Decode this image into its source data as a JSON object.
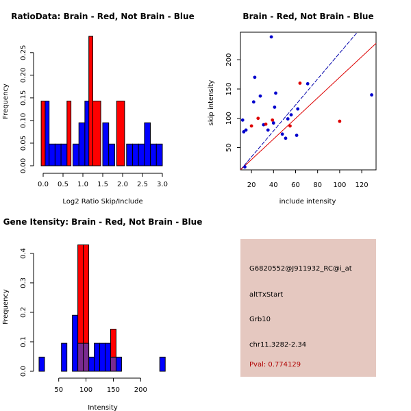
{
  "chart_data": [
    {
      "type": "histogram",
      "title": "RatioData: Brain - Red, Not Brain - Blue",
      "xlabel": "Log2 Ratio Skip/Include",
      "ylabel": "Frequency",
      "xlim": [
        0.0,
        3.0
      ],
      "ylim": [
        0.0,
        0.28
      ],
      "xticks": [
        "0.0",
        "0.5",
        "1.0",
        "1.5",
        "2.0",
        "2.5",
        "3.0"
      ],
      "yticks": [
        "0.00",
        "0.05",
        "0.10",
        "0.15",
        "0.20",
        "0.25"
      ],
      "bin_width": 0.15,
      "series": [
        {
          "name": "Not Brain",
          "color": "#0000ff",
          "bins": [
            [
              0.0,
              0.15,
              0.143
            ],
            [
              0.15,
              0.3,
              0.048
            ],
            [
              0.3,
              0.45,
              0.048
            ],
            [
              0.45,
              0.6,
              0.048
            ],
            [
              0.75,
              0.9,
              0.048
            ],
            [
              0.9,
              1.05,
              0.095
            ],
            [
              1.05,
              1.2,
              0.143
            ],
            [
              1.5,
              1.65,
              0.095
            ],
            [
              1.65,
              1.8,
              0.048
            ],
            [
              2.1,
              2.25,
              0.048
            ],
            [
              2.25,
              2.4,
              0.048
            ],
            [
              2.4,
              2.55,
              0.048
            ],
            [
              2.55,
              2.7,
              0.095
            ],
            [
              2.7,
              2.85,
              0.048
            ],
            [
              2.85,
              3.0,
              0.048
            ]
          ]
        },
        {
          "name": "Brain",
          "color": "#ff0000",
          "bins": [
            [
              -0.05,
              0.05,
              0.143
            ],
            [
              0.6,
              0.7,
              0.143
            ],
            [
              1.15,
              1.25,
              0.286
            ],
            [
              1.25,
              1.45,
              0.143
            ],
            [
              1.85,
              2.05,
              0.143
            ]
          ]
        }
      ]
    },
    {
      "type": "scatter",
      "title": "Brain - Red, Not Brain - Blue",
      "xlabel": "include intensity",
      "ylabel": "skip intensity",
      "xlim": [
        10,
        133
      ],
      "ylim": [
        12,
        247
      ],
      "xticks": [
        20,
        40,
        60,
        80,
        100,
        120
      ],
      "yticks": [
        50,
        100,
        150,
        200
      ],
      "series": [
        {
          "name": "Not Brain",
          "color": "#0000cc",
          "points": [
            [
              12,
              97
            ],
            [
              13,
              77
            ],
            [
              14,
              17
            ],
            [
              15,
              80
            ],
            [
              22,
              128
            ],
            [
              23,
              170
            ],
            [
              28,
              138
            ],
            [
              31,
              89
            ],
            [
              35,
              80
            ],
            [
              38,
              239
            ],
            [
              40,
              92
            ],
            [
              41,
              119
            ],
            [
              42,
              143
            ],
            [
              48,
              73
            ],
            [
              51,
              66
            ],
            [
              53,
              99
            ],
            [
              56,
              106
            ],
            [
              61,
              71
            ],
            [
              62,
              116
            ],
            [
              71,
              159
            ],
            [
              129,
              140
            ]
          ]
        },
        {
          "name": "Brain",
          "color": "#dd0000",
          "points": [
            [
              20,
              87
            ],
            [
              26,
              100
            ],
            [
              33,
              90
            ],
            [
              39,
              97
            ],
            [
              55,
              87
            ],
            [
              64,
              160
            ],
            [
              100,
              95
            ]
          ]
        }
      ],
      "lines": [
        {
          "name": "blue fit",
          "color": "#0000aa",
          "style": "dashed",
          "from": [
            10,
            12
          ],
          "to": [
            116,
            247
          ]
        },
        {
          "name": "red fit",
          "color": "#dd0000",
          "style": "solid",
          "from": [
            10,
            12
          ],
          "to": [
            133,
            228
          ]
        }
      ]
    },
    {
      "type": "histogram",
      "title": "Gene Itensity: Brain - Red, Not Brain - Blue",
      "xlabel": "Intensity",
      "ylabel": "Frequency",
      "xlim": [
        14,
        246
      ],
      "ylim": [
        0.0,
        0.43
      ],
      "xticks": [
        50,
        100,
        150,
        200
      ],
      "yticks": [
        "0.0",
        "0.1",
        "0.2",
        "0.3",
        "0.4"
      ],
      "bin_width": 10,
      "series": [
        {
          "name": "Not Brain",
          "color": "#0000ff",
          "bins": [
            [
              14,
              24,
              0.048
            ],
            [
              55,
              65,
              0.095
            ],
            [
              75,
              85,
              0.19
            ],
            [
              85,
              95,
              0.095
            ],
            [
              95,
              105,
              0.095
            ],
            [
              105,
              115,
              0.048
            ],
            [
              115,
              125,
              0.095
            ],
            [
              125,
              135,
              0.095
            ],
            [
              135,
              145,
              0.095
            ],
            [
              155,
              165,
              0.048
            ],
            [
              235,
              245,
              0.048
            ]
          ]
        },
        {
          "name": "Brain",
          "color": "#ff0000",
          "bins": [
            [
              85,
              95,
              0.429
            ],
            [
              95,
              105,
              0.429
            ],
            [
              145,
              155,
              0.143
            ]
          ]
        },
        {
          "name": "Overlap",
          "color": "#7a2b8f",
          "bins": [
            [
              85,
              95,
              0.095
            ],
            [
              95,
              105,
              0.095
            ],
            [
              145,
              155,
              0.048
            ]
          ]
        }
      ]
    }
  ],
  "info": {
    "probe_id": "G6820552@J911932_RC@i_at",
    "event_type": "altTxStart",
    "gene": "Grb10",
    "location": "chr11.3282-2.34",
    "pval": "Pval: 0.774129",
    "pval_color": "#b00000"
  }
}
